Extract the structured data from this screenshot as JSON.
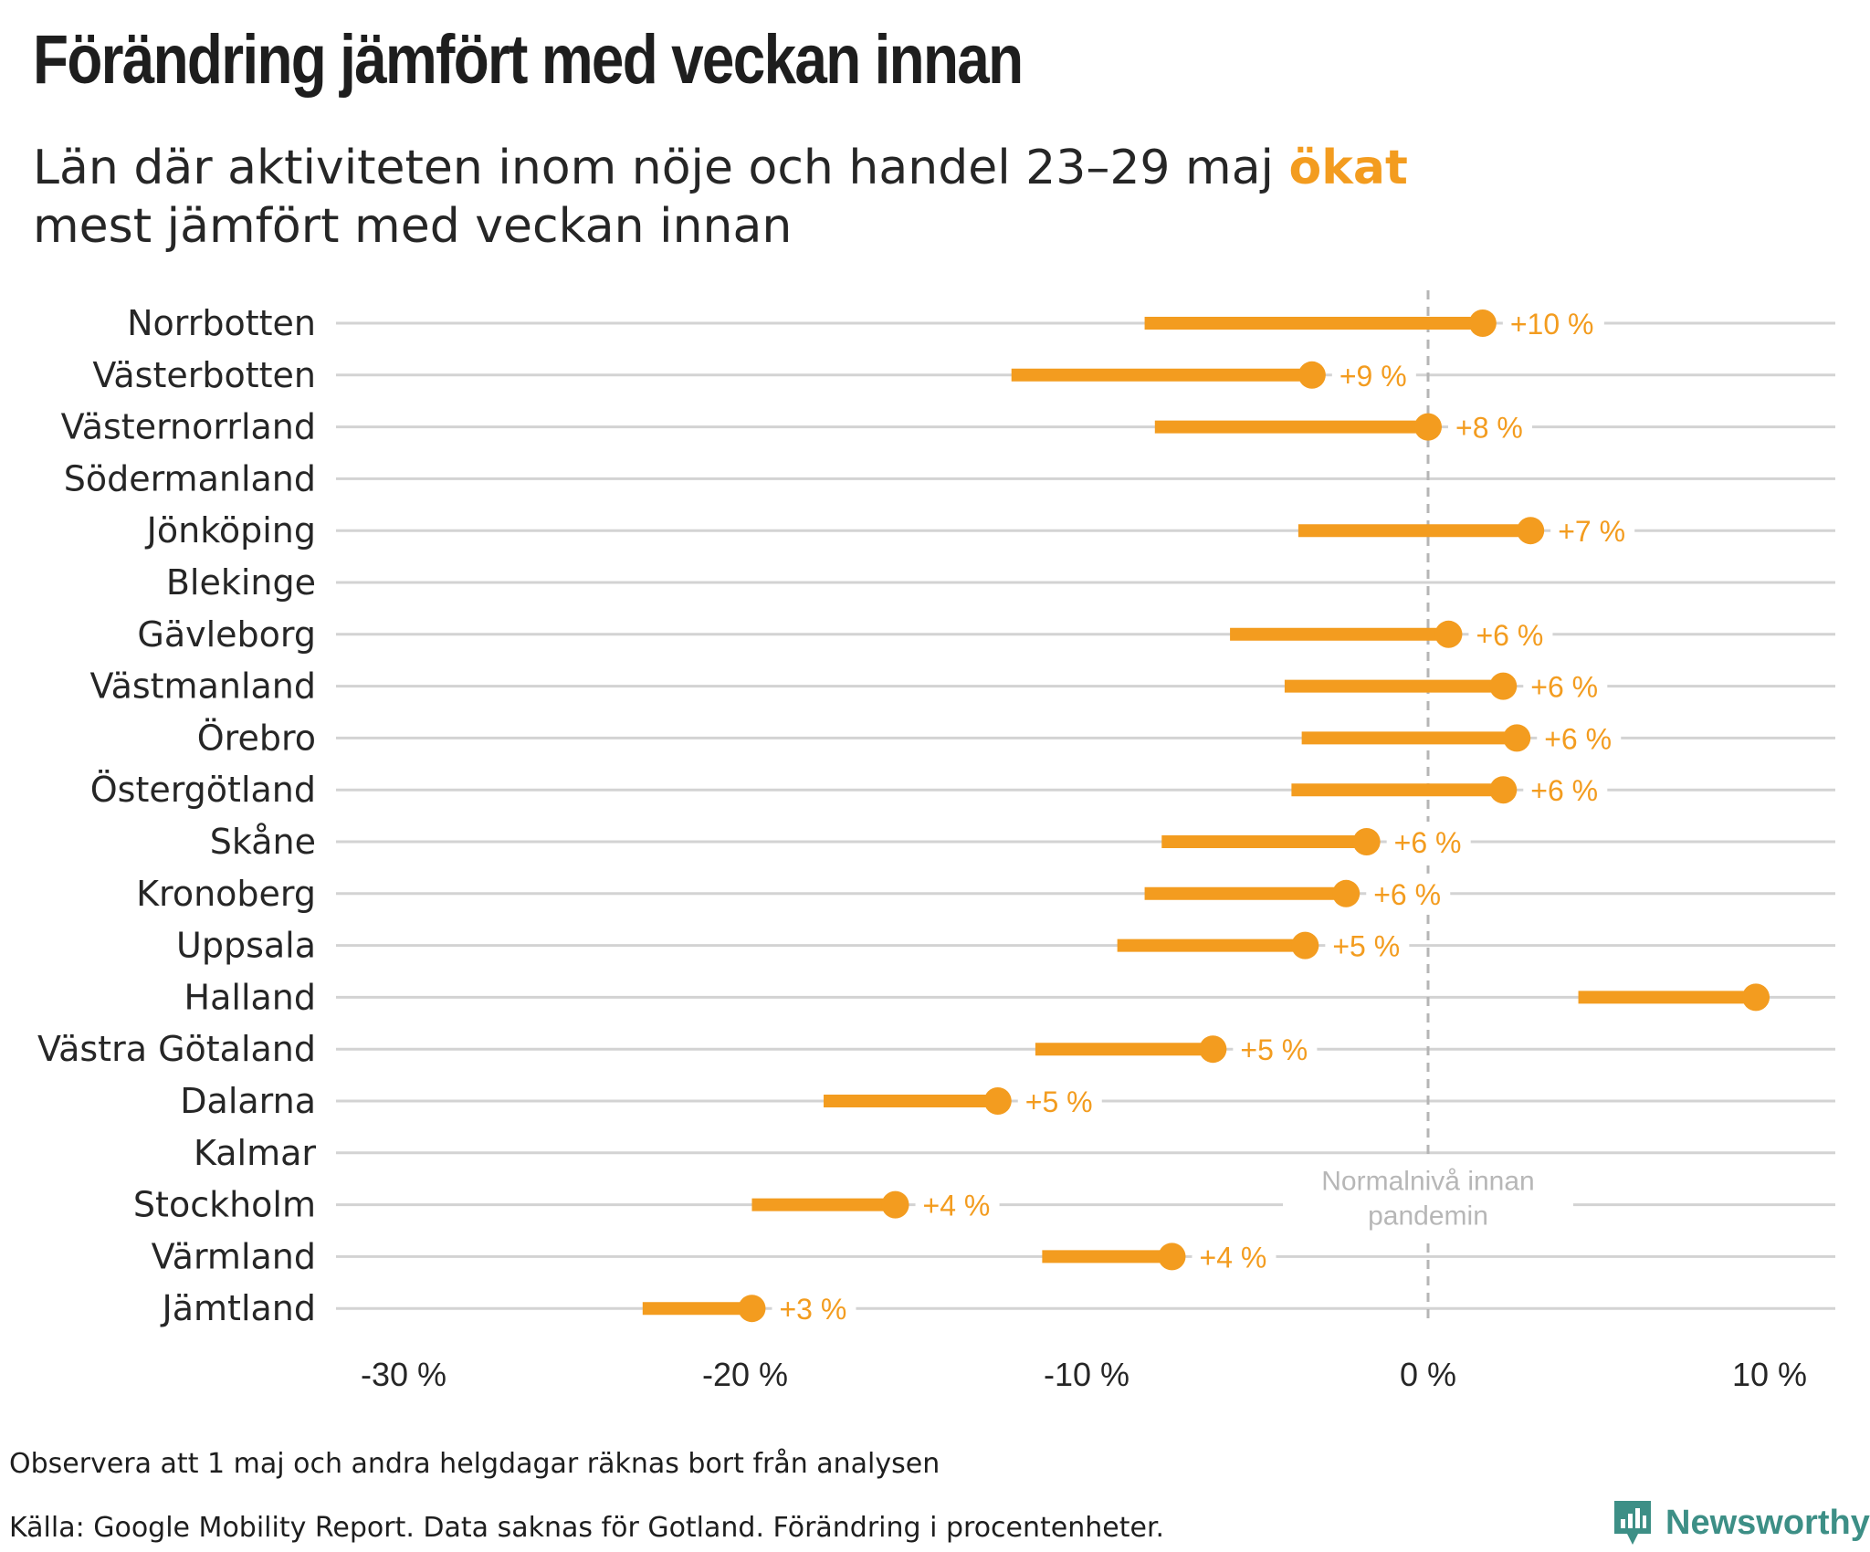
{
  "title": "Förändring jämfört med veckan innan",
  "subtitle": {
    "line1_before": "Län där aktiviteten inom nöje och handel 23–29 maj ",
    "line1_highlight": "ökat",
    "line2": "mest jämfört med veckan innan"
  },
  "colors": {
    "accent": "#f39c1f",
    "grid": "#d3d3d3",
    "reference": "#b5b5b5",
    "brand": "#3d8f86"
  },
  "chart_data": {
    "type": "dumbbell",
    "orientation": "horizontal",
    "x_unit": "%",
    "xlim": [
      -32,
      11.5
    ],
    "x_ticks": [
      -30,
      -20,
      -10,
      0,
      10
    ],
    "x_tick_labels": [
      "-30 %",
      "-20 %",
      "-10 %",
      "0 %",
      "10 %"
    ],
    "grid": true,
    "reference_line": {
      "x": 0,
      "style": "dashed",
      "label_lines": [
        "Normalnivå innan",
        "pandemin"
      ]
    },
    "rows": [
      {
        "region": "Norrbotten",
        "from": -8.3,
        "to": 1.6,
        "label": "+10 %"
      },
      {
        "region": "Västerbotten",
        "from": -12.2,
        "to": -3.4,
        "label": "+9 %"
      },
      {
        "region": "Västernorrland",
        "from": -8.0,
        "to": 0.0,
        "label": "+8 %"
      },
      {
        "region": "Södermanland",
        "from": null,
        "to": null,
        "label": ""
      },
      {
        "region": "Jönköping",
        "from": -3.8,
        "to": 3.0,
        "label": "+7 %"
      },
      {
        "region": "Blekinge",
        "from": null,
        "to": null,
        "label": ""
      },
      {
        "region": "Gävleborg",
        "from": -5.8,
        "to": 0.6,
        "label": "+6 %"
      },
      {
        "region": "Västmanland",
        "from": -4.2,
        "to": 2.2,
        "label": "+6 %"
      },
      {
        "region": "Örebro",
        "from": -3.7,
        "to": 2.6,
        "label": "+6 %"
      },
      {
        "region": "Östergötland",
        "from": -4.0,
        "to": 2.2,
        "label": "+6 %"
      },
      {
        "region": "Skåne",
        "from": -7.8,
        "to": -1.8,
        "label": "+6 %"
      },
      {
        "region": "Kronoberg",
        "from": -8.3,
        "to": -2.4,
        "label": "+6 %"
      },
      {
        "region": "Uppsala",
        "from": -9.1,
        "to": -3.6,
        "label": "+5 %"
      },
      {
        "region": "Halland",
        "from": 4.4,
        "to": 9.6,
        "label": ""
      },
      {
        "region": "Västra Götaland",
        "from": -11.5,
        "to": -6.3,
        "label": "+5 %"
      },
      {
        "region": "Dalarna",
        "from": -17.7,
        "to": -12.6,
        "label": "+5 %"
      },
      {
        "region": "Kalmar",
        "from": null,
        "to": null,
        "label": ""
      },
      {
        "region": "Stockholm",
        "from": -19.8,
        "to": -15.6,
        "label": "+4 %"
      },
      {
        "region": "Värmland",
        "from": -11.3,
        "to": -7.5,
        "label": "+4 %"
      },
      {
        "region": "Jämtland",
        "from": -23.0,
        "to": -19.8,
        "label": "+3 %"
      }
    ]
  },
  "footer": {
    "note": "Observera att 1 maj och andra helgdagar räknas bort från analysen",
    "source": "Källa: Google Mobility Report. Data saknas för Gotland. Förändring i procentenheter.",
    "brand": "Newsworthy"
  }
}
